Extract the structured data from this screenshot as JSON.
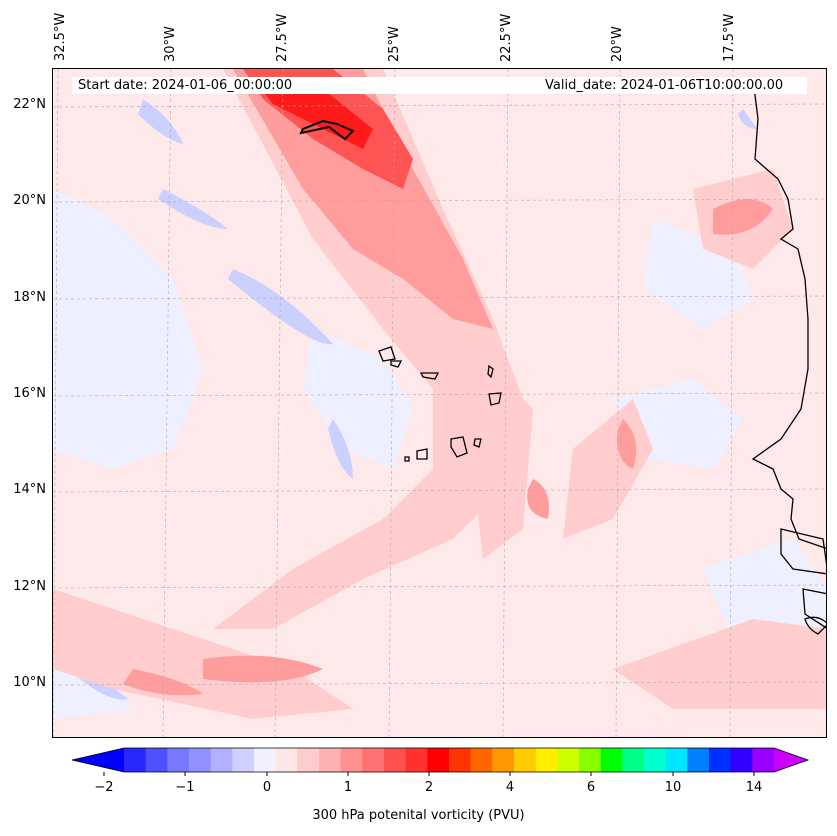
{
  "map": {
    "longitude_labels": [
      "32.5°W",
      "30°W",
      "27.5°W",
      "25°W",
      "22.5°W",
      "20°W",
      "17.5°W"
    ],
    "latitude_labels": [
      "22°N",
      "20°N",
      "18°N",
      "16°N",
      "14°N",
      "12°N",
      "10°N"
    ],
    "start_date": "Start date: 2024-01-06_00:00:00",
    "valid_date": "Valid_date: 2024-01-06T10:00:00.00"
  },
  "colorbar": {
    "label": "300 hPa potenital vorticity (PVU)",
    "ticks": [
      "−2",
      "−1",
      "0",
      "1",
      "2",
      "4",
      "6",
      "10",
      "14"
    ],
    "colors": [
      "#0000ff",
      "#2828ff",
      "#5050ff",
      "#7878ff",
      "#9090ff",
      "#b0b0ff",
      "#d0d0ff",
      "#f0f0ff",
      "#ffe6e6",
      "#ffcccc",
      "#ffb0b0",
      "#ff9090",
      "#ff7070",
      "#ff5050",
      "#ff3030",
      "#ff0000",
      "#ff3300",
      "#ff6600",
      "#ff9900",
      "#ffcc00",
      "#ffee00",
      "#ccff00",
      "#88ff00",
      "#00ff00",
      "#00ff88",
      "#00ffcc",
      "#00e6ff",
      "#0080ff",
      "#0030ff",
      "#3300ff",
      "#9900ff",
      "#cc00ff"
    ]
  }
}
